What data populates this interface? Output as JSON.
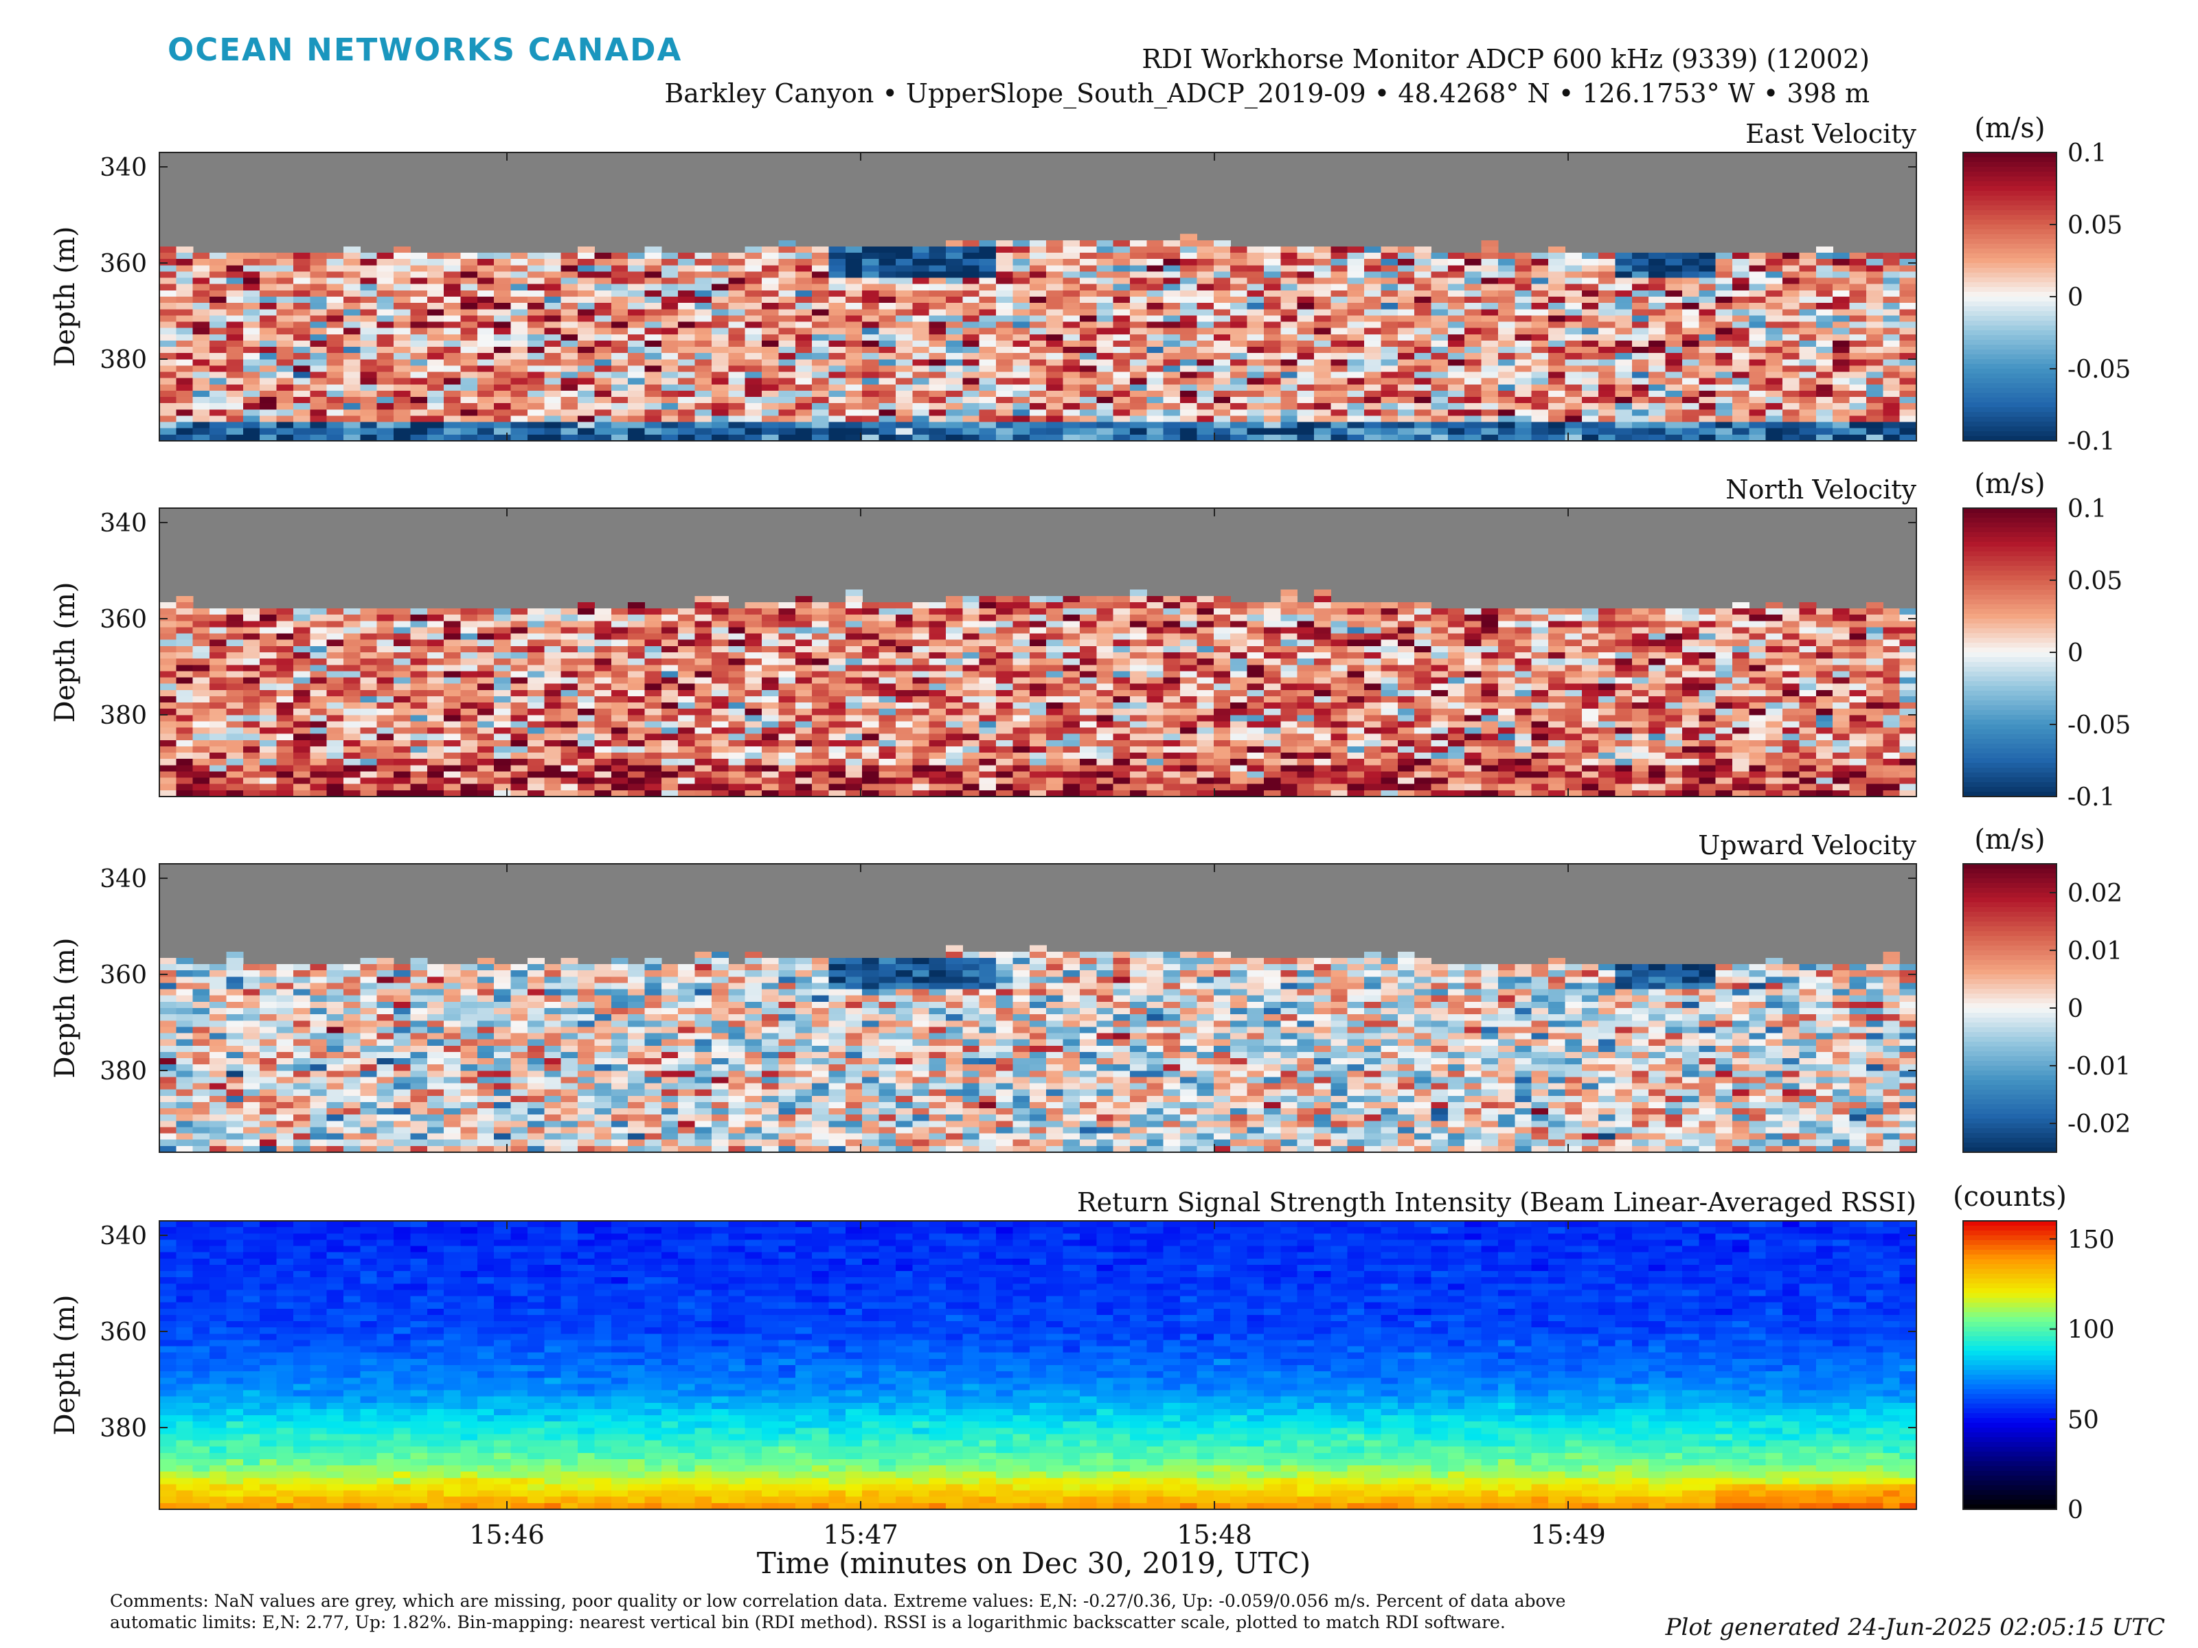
{
  "header": {
    "brand": "OCEAN NETWORKS CANADA",
    "brand_color": "#1a96be",
    "title": "RDI Workhorse Monitor ADCP 600 kHz (9339) (12002)",
    "subtitle": "Barkley Canyon • UpperSlope_South_ADCP_2019-09 • 48.4268° N • 126.1753° W • 398 m"
  },
  "footer": {
    "comments": "Comments: NaN values are grey, which are missing, poor quality or low correlation data. Extreme values: E,N: -0.27/0.36, Up: -0.059/0.056 m/s. Percent of data above automatic limits: E,N: 2.77, Up: 1.82%. Bin-mapping: nearest vertical bin (RDI method). RSSI is a logarithmic backscatter scale, plotted to match RDI software.",
    "generated": "Plot generated 24-Jun-2025 02:05:15 UTC"
  },
  "chart_data": [
    {
      "type": "heatmap",
      "title": "East Velocity",
      "ylabel": "Depth (m)",
      "xlabel": "Time (minutes on Dec 30, 2019, UTC)",
      "x_ticks": [
        "15:46",
        "15:47",
        "15:48",
        "15:49"
      ],
      "y_ticks": [
        340,
        360,
        380
      ],
      "ylim": [
        397,
        337
      ],
      "colorbar": {
        "label": "(m/s)",
        "range": [
          -0.1,
          0.1
        ],
        "ticks": [
          "0.1",
          "0.05",
          "0",
          "-0.05",
          "-0.1"
        ],
        "colormap": "RdBu_r"
      },
      "nan_color": "#808080",
      "approx_valid_from_depth_m": 357,
      "pattern": "mostly weak positive (reddish) values, a band of strong negative values near 360 m around 15:47 and 15:49, negative values near the bottom"
    },
    {
      "type": "heatmap",
      "title": "North Velocity",
      "ylabel": "Depth (m)",
      "x_ticks": [
        "15:46",
        "15:47",
        "15:48",
        "15:49"
      ],
      "y_ticks": [
        340,
        360,
        380
      ],
      "ylim": [
        397,
        337
      ],
      "colorbar": {
        "label": "(m/s)",
        "range": [
          -0.1,
          0.1
        ],
        "ticks": [
          "0.1",
          "0.05",
          "0",
          "-0.05",
          "-0.1"
        ],
        "colormap": "RdBu_r"
      },
      "nan_color": "#808080",
      "approx_valid_from_depth_m": 357,
      "pattern": "predominantly positive (red), strongest near the bottom"
    },
    {
      "type": "heatmap",
      "title": "Upward Velocity",
      "ylabel": "Depth (m)",
      "x_ticks": [
        "15:46",
        "15:47",
        "15:48",
        "15:49"
      ],
      "y_ticks": [
        340,
        360,
        380
      ],
      "ylim": [
        397,
        337
      ],
      "colorbar": {
        "label": "(m/s)",
        "range": [
          -0.025,
          0.025
        ],
        "ticks": [
          "0.02",
          "0.01",
          "0",
          "-0.01",
          "-0.02"
        ],
        "colormap": "RdBu_r"
      },
      "nan_color": "#808080",
      "approx_valid_from_depth_m": 357,
      "pattern": "mixed small values near zero, negative band near 360 m"
    },
    {
      "type": "heatmap",
      "title": "Return Signal Strength Intensity (Beam Linear-Averaged RSSI)",
      "ylabel": "Depth (m)",
      "x_ticks": [
        "15:46",
        "15:47",
        "15:48",
        "15:49"
      ],
      "y_ticks": [
        340,
        360,
        380
      ],
      "ylim": [
        397,
        337
      ],
      "colorbar": {
        "label": "(counts)",
        "range": [
          0,
          160
        ],
        "ticks": [
          "150",
          "100",
          "50",
          "0"
        ],
        "colormap": "jet-like"
      },
      "depth_profile_counts": [
        {
          "depth": 337,
          "counts": 55
        },
        {
          "depth": 360,
          "counts": 60
        },
        {
          "depth": 372,
          "counts": 72
        },
        {
          "depth": 380,
          "counts": 90
        },
        {
          "depth": 388,
          "counts": 105
        },
        {
          "depth": 393,
          "counts": 125
        },
        {
          "depth": 397,
          "counts": 140
        }
      ]
    }
  ]
}
